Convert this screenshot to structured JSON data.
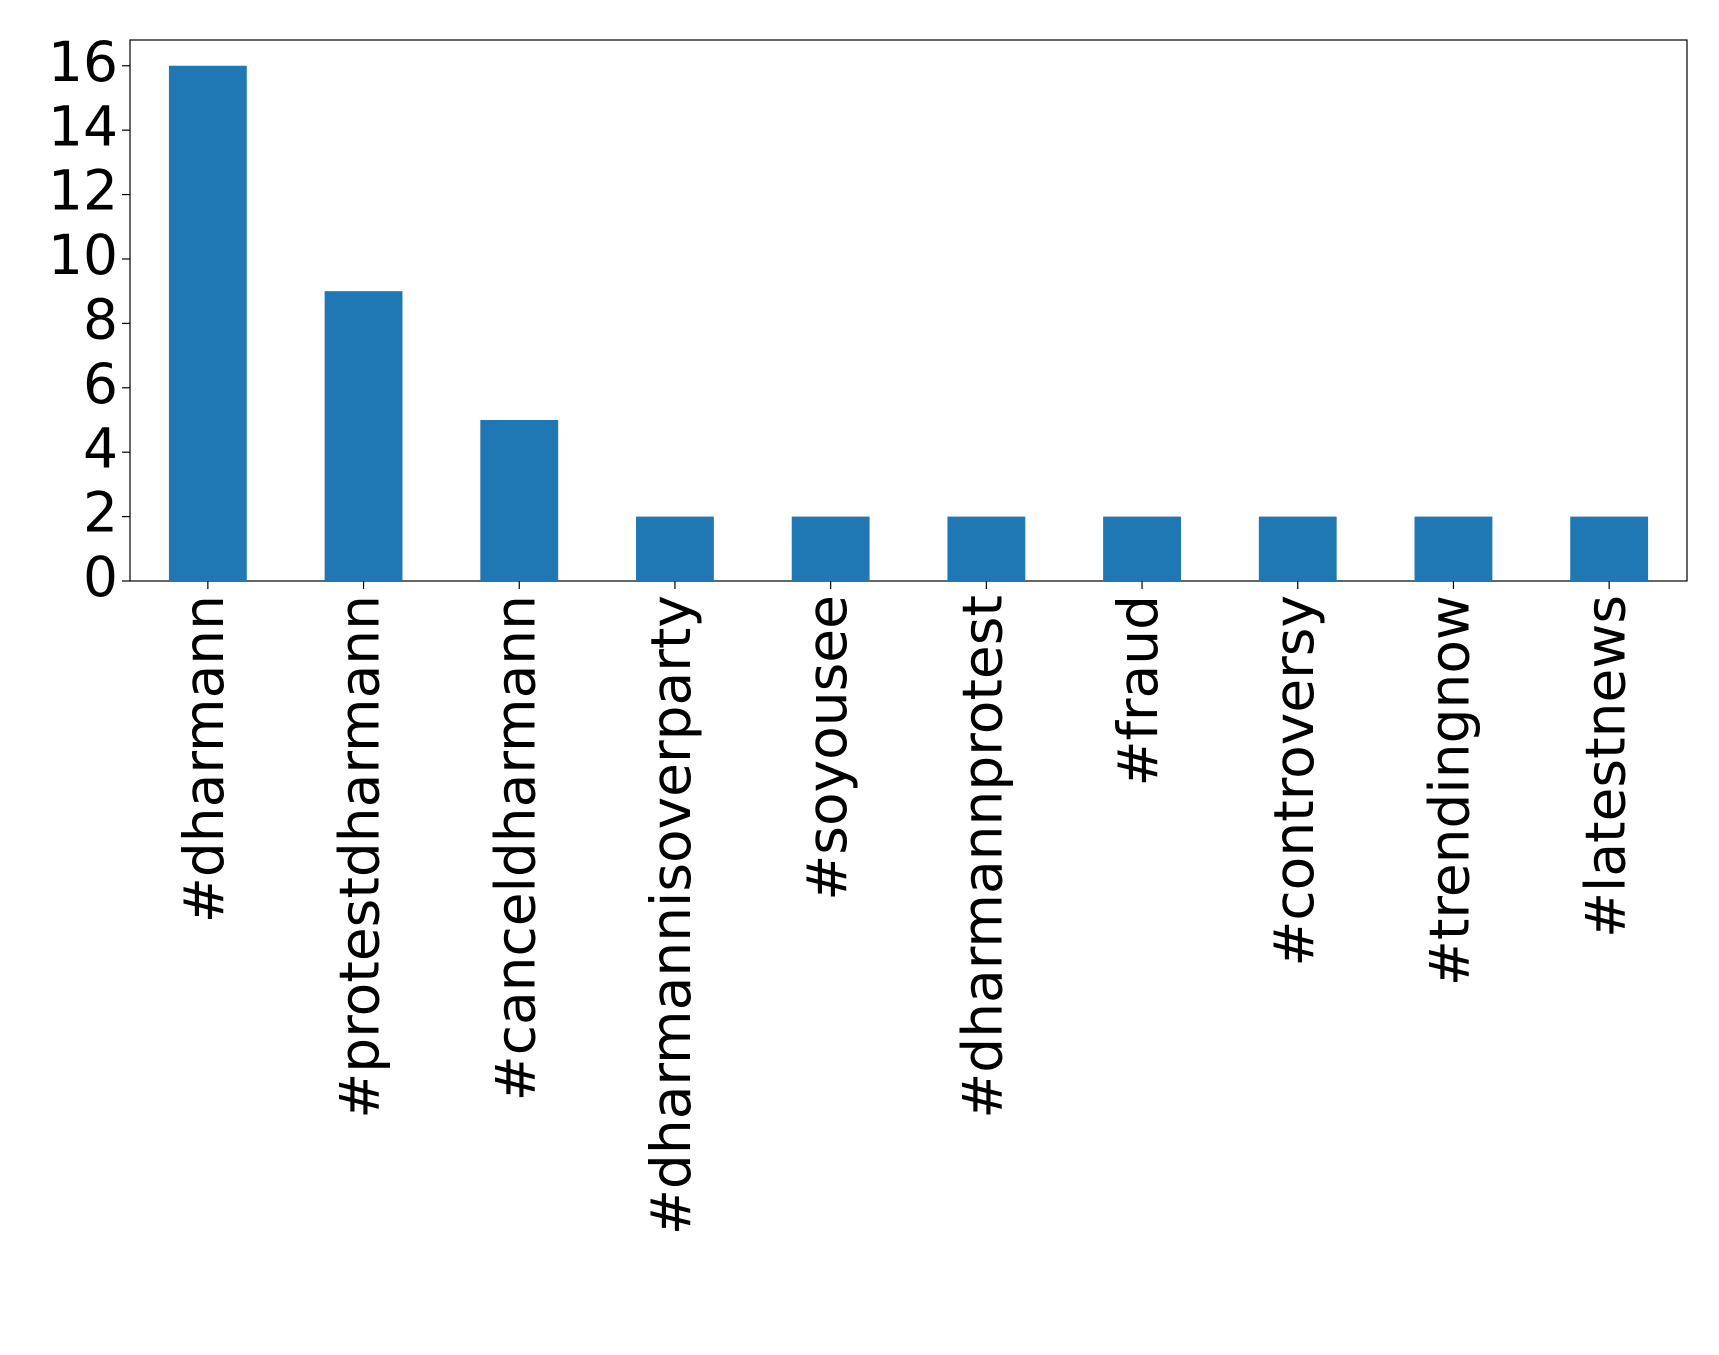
{
  "chart_data": {
    "type": "bar",
    "categories": [
      "#dharmann",
      "#protestdharmann",
      "#canceldharmann",
      "#dharmannisoverparty",
      "#soyousee",
      "#dharmannprotest",
      "#fraud",
      "#controversy",
      "#trendingnow",
      "#latestnews"
    ],
    "values": [
      16,
      9,
      5,
      2,
      2,
      2,
      2,
      2,
      2,
      2
    ],
    "color": "#1f77b4",
    "ylim": [
      0,
      16.8
    ],
    "yticks": [
      0,
      2,
      4,
      6,
      8,
      10,
      12,
      14,
      16
    ],
    "grid": false
  }
}
